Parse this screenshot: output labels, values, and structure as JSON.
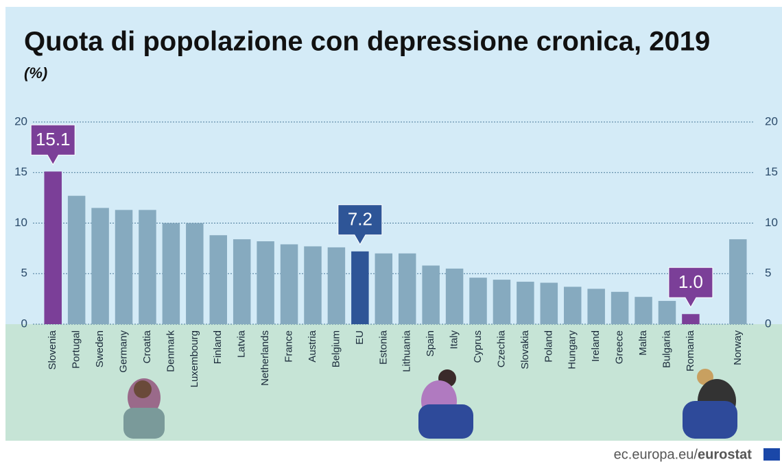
{
  "chart_data": {
    "type": "bar",
    "title": "Quota di popolazione con depressione cronica, 2019",
    "subtitle": "(%)",
    "categories": [
      "Slovenia",
      "Portugal",
      "Sweden",
      "Germany",
      "Croatia",
      "Denmark",
      "Luxembourg",
      "Finland",
      "Latvia",
      "Netherlands",
      "France",
      "Austria",
      "Belgium",
      "EU",
      "Estonia",
      "Lithuania",
      "Spain",
      "Italy",
      "Cyprus",
      "Czechia",
      "Slovakia",
      "Poland",
      "Hungary",
      "Ireland",
      "Greece",
      "Malta",
      "Bulgaria",
      "Romania",
      null,
      "Norway"
    ],
    "values": [
      15.1,
      12.7,
      11.5,
      11.3,
      11.3,
      10.0,
      10.0,
      8.8,
      8.4,
      8.2,
      7.9,
      7.7,
      7.6,
      7.2,
      7.0,
      7.0,
      5.8,
      5.5,
      4.6,
      4.4,
      4.2,
      4.1,
      3.7,
      3.5,
      3.2,
      2.7,
      2.3,
      1.0,
      null,
      8.4
    ],
    "value_labels": [
      "15.1",
      null,
      null,
      null,
      null,
      null,
      null,
      null,
      null,
      null,
      null,
      null,
      null,
      "7.2",
      null,
      null,
      null,
      null,
      null,
      null,
      null,
      null,
      null,
      null,
      null,
      null,
      null,
      "1.0",
      null,
      null
    ],
    "colors": [
      "#7b3f98",
      "#86aabf",
      "#86aabf",
      "#86aabf",
      "#86aabf",
      "#86aabf",
      "#86aabf",
      "#86aabf",
      "#86aabf",
      "#86aabf",
      "#86aabf",
      "#86aabf",
      "#86aabf",
      "#2e5597",
      "#86aabf",
      "#86aabf",
      "#86aabf",
      "#86aabf",
      "#86aabf",
      "#86aabf",
      "#86aabf",
      "#86aabf",
      "#86aabf",
      "#86aabf",
      "#86aabf",
      "#86aabf",
      "#86aabf",
      "#7b3f98",
      null,
      "#86aabf"
    ],
    "ylim": [
      0,
      20
    ],
    "yticks": [
      0,
      5,
      10,
      15,
      20
    ],
    "y2lim": [
      0,
      20
    ],
    "y2ticks": [
      0,
      5,
      10,
      15,
      20
    ],
    "grid": true,
    "source": [
      "ec.europa.eu/",
      "eurostat"
    ]
  }
}
